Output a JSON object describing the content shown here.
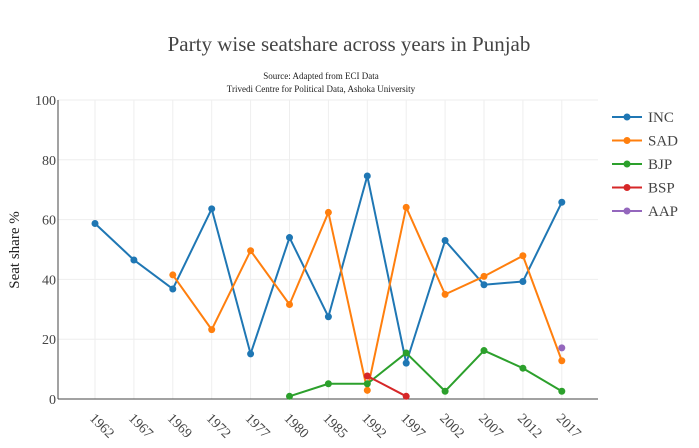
{
  "chart_data": {
    "type": "line",
    "title": "Party wise seatshare across years in Punjab",
    "subtitle_lines": [
      "Source: Adapted from ECI Data",
      "Trivedi Centre for Political Data, Ashoka University"
    ],
    "xlabel": "",
    "ylabel": "Seat share %",
    "categories": [
      "1962",
      "1967",
      "1969",
      "1972",
      "1977",
      "1980",
      "1985",
      "1992",
      "1997",
      "2002",
      "2007",
      "2012",
      "2017"
    ],
    "ylim": [
      0,
      100
    ],
    "yticks": [
      0,
      20,
      40,
      60,
      80,
      100
    ],
    "grid": true,
    "legend_position": "right",
    "series": [
      {
        "name": "INC",
        "color": "#1f77b4",
        "values": [
          58.7,
          46.5,
          36.8,
          63.6,
          15.1,
          54.0,
          27.5,
          74.6,
          12.0,
          53.0,
          38.2,
          39.3,
          65.8
        ]
      },
      {
        "name": "SAD",
        "color": "#ff7f0e",
        "values": [
          null,
          null,
          41.5,
          23.2,
          49.6,
          31.6,
          62.4,
          2.9,
          64.1,
          35.0,
          41.0,
          47.9,
          12.8
        ]
      },
      {
        "name": "BJP",
        "color": "#2ca02c",
        "values": [
          null,
          null,
          null,
          null,
          null,
          0.9,
          5.1,
          5.1,
          15.4,
          2.6,
          16.2,
          10.3,
          2.6
        ]
      },
      {
        "name": "BSP",
        "color": "#d62728",
        "values": [
          null,
          null,
          null,
          null,
          null,
          null,
          null,
          7.7,
          0.9,
          null,
          null,
          null,
          null
        ]
      },
      {
        "name": "AAP",
        "color": "#9467bd",
        "values": [
          null,
          null,
          null,
          null,
          null,
          null,
          null,
          null,
          null,
          null,
          null,
          null,
          17.1
        ]
      }
    ]
  }
}
